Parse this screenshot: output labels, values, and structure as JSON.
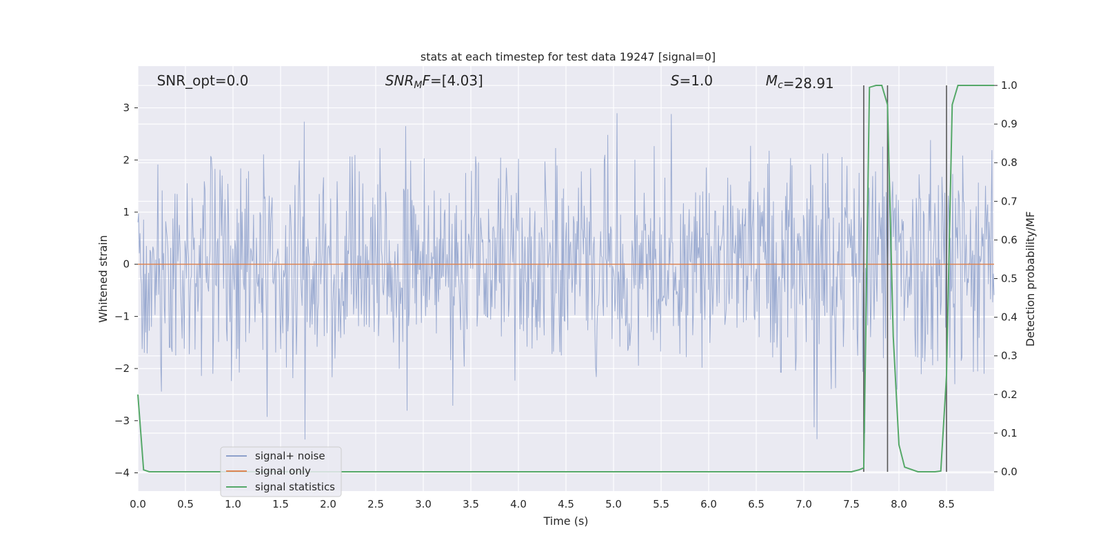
{
  "chart_data": {
    "type": "line",
    "title": "stats at each timestep for test data 19247 [signal=0]",
    "xlabel": "Time (s)",
    "ylabel": "Whitened strain",
    "y2label": "Detection probability/MF",
    "xlim": [
      0.0,
      9.0
    ],
    "ylim": [
      -4.35,
      3.8
    ],
    "y2lim": [
      -0.05,
      1.05
    ],
    "xticks": [
      "0.0",
      "0.5",
      "1.0",
      "1.5",
      "2.0",
      "2.5",
      "3.0",
      "3.5",
      "4.0",
      "4.5",
      "5.0",
      "5.5",
      "6.0",
      "6.5",
      "7.0",
      "7.5",
      "8.0",
      "8.5"
    ],
    "yticks": [
      "3",
      "2",
      "1",
      "0",
      "−1",
      "−2",
      "−3",
      "−4"
    ],
    "y2ticks": [
      "1.0",
      "0.9",
      "0.8",
      "0.7",
      "0.6",
      "0.5",
      "0.4",
      "0.3",
      "0.2",
      "0.1",
      "0.0"
    ],
    "grid": true,
    "legend_position": "lower-left",
    "annotations": [
      {
        "text": "SNR_opt=0.0",
        "x": 0.2
      },
      {
        "text": "SNR",
        "sub": "M",
        "suffix": "F=[4.03]",
        "x": 2.6
      },
      {
        "text": "S",
        "suffix": "=1.0",
        "x": 5.6
      },
      {
        "text": "M",
        "sub": "c",
        "suffix": "=28.91",
        "x": 6.6
      }
    ],
    "series": [
      {
        "name": "signal+ noise",
        "color": "#8da0cb",
        "kind": "noise",
        "duration": 9.0,
        "samples": 1200,
        "sigma": 1.0,
        "seed": 19247
      },
      {
        "name": "signal only",
        "color": "#dd8452",
        "x": [
          0.0,
          9.0
        ],
        "y": [
          0.0,
          0.0
        ]
      },
      {
        "name": "signal statistics",
        "color": "#55a868",
        "axis": "right",
        "x": [
          0.0,
          0.06,
          0.12,
          0.5,
          1.0,
          2.0,
          3.0,
          4.0,
          5.0,
          6.0,
          7.0,
          7.5,
          7.58,
          7.63,
          7.69,
          7.76,
          7.82,
          7.88,
          7.94,
          8.0,
          8.06,
          8.2,
          8.3,
          8.38,
          8.44,
          8.5,
          8.56,
          8.62,
          8.7,
          9.0
        ],
        "y": [
          0.2,
          0.005,
          0.0,
          0.0,
          0.0,
          0.0,
          0.0,
          0.0,
          0.0,
          0.0,
          0.0,
          0.0,
          0.005,
          0.01,
          0.995,
          1.0,
          1.0,
          0.95,
          0.35,
          0.07,
          0.012,
          0.0,
          0.0,
          0.0,
          0.002,
          0.25,
          0.95,
          1.0,
          1.0,
          1.0
        ]
      }
    ],
    "vlines": {
      "x": [
        7.63,
        7.88,
        8.5
      ],
      "y2_range": [
        0.0,
        1.0
      ],
      "color": "#555555"
    }
  }
}
